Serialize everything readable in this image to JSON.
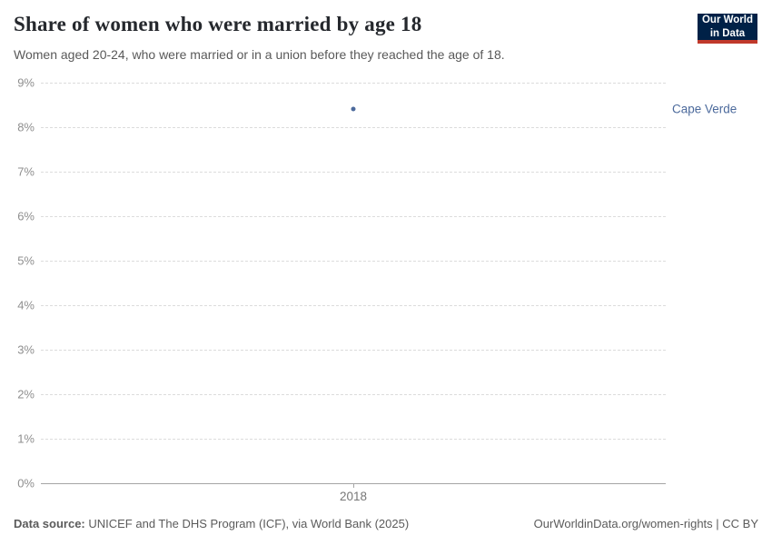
{
  "header": {
    "title": "Share of women who were married by age 18",
    "subtitle": "Women aged 20-24, who were married or in a union before they reached the age of 18.",
    "logo": {
      "line1": "Our World",
      "line2": "in Data",
      "bg_color": "#002147",
      "stripe_color": "#c0392b"
    }
  },
  "chart_data": {
    "type": "scatter",
    "title": "Share of women who were married by age 18",
    "series": [
      {
        "name": "Cape Verde",
        "x": [
          2018
        ],
        "values": [
          8.4
        ],
        "color": "#4c6a9c"
      }
    ],
    "xlabel": "",
    "ylabel": "",
    "ylim": [
      0,
      9
    ],
    "ytick_step": 1,
    "ytick_suffix": "%",
    "xticks": [
      "2018"
    ],
    "grid": "horizontal-dashed",
    "legend_position": "right-of-point"
  },
  "footer": {
    "source_label": "Data source:",
    "source_text": " UNICEF and The DHS Program (ICF), via World Bank (2025)",
    "link_text": "OurWorldinData.org/women-rights | CC BY"
  }
}
